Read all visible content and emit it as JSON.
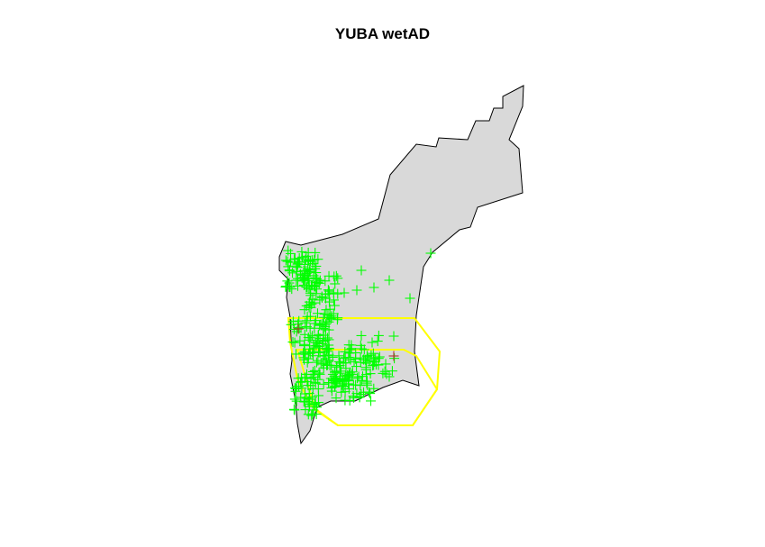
{
  "title": "YUBA wetAD",
  "colors": {
    "region_fill": "#d9d9d9",
    "region_stroke": "#000000",
    "point_main": "#00ff00",
    "point_highlight": "#b03030",
    "range_polygon": "#ffff00"
  }
}
